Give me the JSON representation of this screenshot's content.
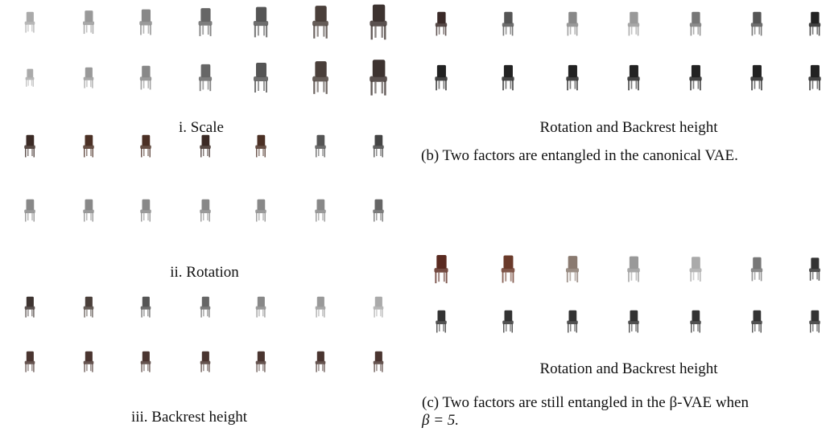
{
  "left": {
    "scale": "i. Scale",
    "rotation": "ii. Rotation",
    "backrest": "iii. Backrest height"
  },
  "right": {
    "b": {
      "axis": "Rotation and Backrest height",
      "caption": "(b) Two factors are entangled in the canonical VAE."
    },
    "c": {
      "axis": "Rotation and Backrest height",
      "caption_line1": "(c) Two factors are still entangled in the β-VAE when",
      "caption_line2": "β = 5."
    }
  }
}
